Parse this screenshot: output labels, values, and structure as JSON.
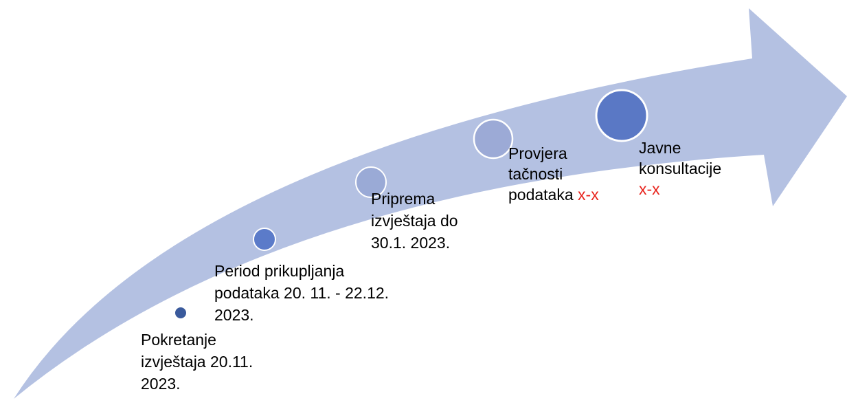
{
  "steps": [
    {
      "lines": [
        "Pokretanje",
        "izvještaja 20.11.",
        "2023."
      ]
    },
    {
      "lines": [
        "Period prikupljanja",
        "podataka 20. 11. - 22.12.",
        "2023."
      ]
    },
    {
      "lines": [
        "Priprema",
        "izvještaja do",
        "30.1. 2023."
      ]
    },
    {
      "lines": [
        "Provjera",
        "tačnosti",
        "podataka"
      ],
      "note": "x-x"
    },
    {
      "lines": [
        "Javne",
        "konsultacije"
      ],
      "note": "x-x"
    }
  ]
}
